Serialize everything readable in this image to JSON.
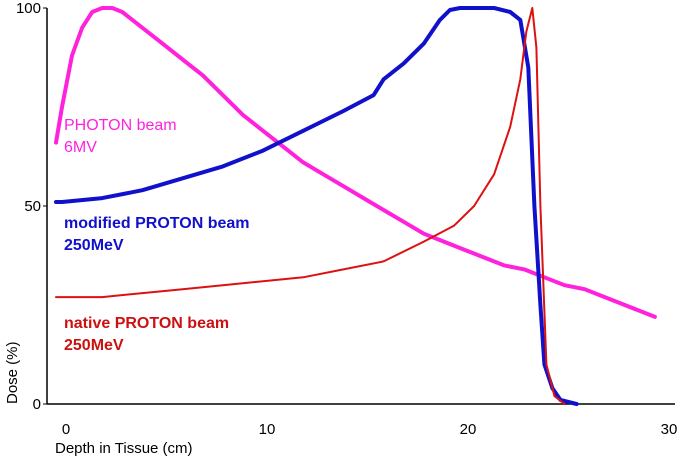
{
  "chart_data": {
    "type": "line",
    "title": "",
    "xlabel": "Depth in Tissue (cm)",
    "ylabel": "Dose (%)",
    "xlim": [
      0,
      30
    ],
    "ylim": [
      0,
      100
    ],
    "x_ticks": [
      0,
      10,
      20,
      30
    ],
    "y_ticks": [
      0,
      50,
      100
    ],
    "x_tick_labels": [
      "0",
      "10",
      "20",
      "30"
    ],
    "y_tick_labels": [
      "0",
      "50",
      "100"
    ],
    "grid": false,
    "legend": "inline labels",
    "series": [
      {
        "name": "PHOTON beam",
        "subname": "6MV",
        "color": "#ff22dd",
        "x": [
          -0.3,
          0,
          0.5,
          1,
          1.5,
          2,
          2.5,
          3,
          4,
          5,
          6,
          7,
          8,
          9,
          10,
          11,
          12,
          13,
          14,
          15,
          16,
          17,
          18,
          19,
          20,
          21,
          22,
          23,
          24,
          25,
          26,
          27,
          28,
          29.5
        ],
        "y": [
          66,
          75,
          88,
          95,
          99,
          100,
          100,
          99,
          95,
          91,
          87,
          83,
          78,
          73,
          69,
          65,
          61,
          58,
          55,
          52,
          49,
          46,
          43,
          41,
          39,
          37,
          35,
          34,
          32,
          30,
          29,
          27,
          25,
          22
        ]
      },
      {
        "name": "modified PROTON beam",
        "subname": "250MeV",
        "color": "#1111cc",
        "x": [
          -0.3,
          0,
          2,
          4,
          6,
          8,
          10,
          12,
          14,
          15.5,
          16,
          17,
          18,
          18.8,
          19.3,
          19.8,
          20.5,
          21.5,
          22.3,
          22.8,
          23.2,
          23.5,
          23.8,
          24,
          24.4,
          24.8,
          25.6
        ],
        "y": [
          51,
          51,
          52,
          54,
          57,
          60,
          64,
          69,
          74,
          78,
          82,
          86,
          91,
          97,
          99.5,
          100,
          100,
          100,
          99,
          97,
          85,
          50,
          25,
          10,
          4,
          1,
          0
        ]
      },
      {
        "name": "native PROTON beam",
        "subname": "250MeV",
        "color": "#dd1111",
        "x": [
          -0.3,
          0,
          2,
          4,
          6,
          8,
          10,
          12,
          14,
          16,
          18,
          19.5,
          20.5,
          21.5,
          22.3,
          22.8,
          23.1,
          23.4,
          23.6,
          23.8,
          24.1,
          24.5,
          25
        ],
        "y": [
          27,
          27,
          27,
          28,
          29,
          30,
          31,
          32,
          34,
          36,
          41,
          45,
          50,
          58,
          70,
          82,
          94,
          100,
          90,
          50,
          10,
          2,
          0
        ]
      }
    ],
    "annotations": {
      "photon_line1": "PHOTON beam",
      "photon_line2": "6MV",
      "modified_line1": "modified PROTON beam",
      "modified_line2": "250MeV",
      "native_line1": "native PROTON beam",
      "native_line2": "250MeV"
    }
  }
}
